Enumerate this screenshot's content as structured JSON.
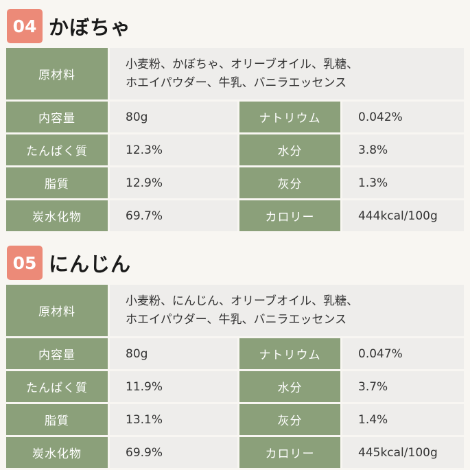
{
  "sections": [
    {
      "number": "04",
      "title": "かぼちゃ",
      "ingredients_label": "原材料",
      "ingredients": [
        "小麦粉、かぼちゃ、オリーブオイル、乳糖、",
        "ホエイパウダー、牛乳、バニラエッセンス"
      ],
      "rows": [
        {
          "l1": "内容量",
          "v1": "80g",
          "l2": "ナトリウム",
          "v2": "0.042%"
        },
        {
          "l1": "たんぱく質",
          "v1": "12.3%",
          "l2": "水分",
          "v2": "3.8%"
        },
        {
          "l1": "脂質",
          "v1": "12.9%",
          "l2": "灰分",
          "v2": "1.3%"
        },
        {
          "l1": "炭水化物",
          "v1": "69.7%",
          "l2": "カロリー",
          "v2": "444kcal/100g"
        }
      ]
    },
    {
      "number": "05",
      "title": "にんじん",
      "ingredients_label": "原材料",
      "ingredients": [
        "小麦粉、にんじん、オリーブオイル、乳糖、",
        "ホエイパウダー、牛乳、バニラエッセンス"
      ],
      "rows": [
        {
          "l1": "内容量",
          "v1": "80g",
          "l2": "ナトリウム",
          "v2": "0.047%"
        },
        {
          "l1": "たんぱく質",
          "v1": "11.9%",
          "l2": "水分",
          "v2": "3.7%"
        },
        {
          "l1": "脂質",
          "v1": "13.1%",
          "l2": "灰分",
          "v2": "1.4%"
        },
        {
          "l1": "炭水化物",
          "v1": "69.9%",
          "l2": "カロリー",
          "v2": "445kcal/100g"
        }
      ]
    }
  ],
  "colors": {
    "badge": "#ec8a78",
    "label_bg": "#8ba07a",
    "value_bg": "#eeedeb",
    "page_bg": "#f8f6f2"
  }
}
